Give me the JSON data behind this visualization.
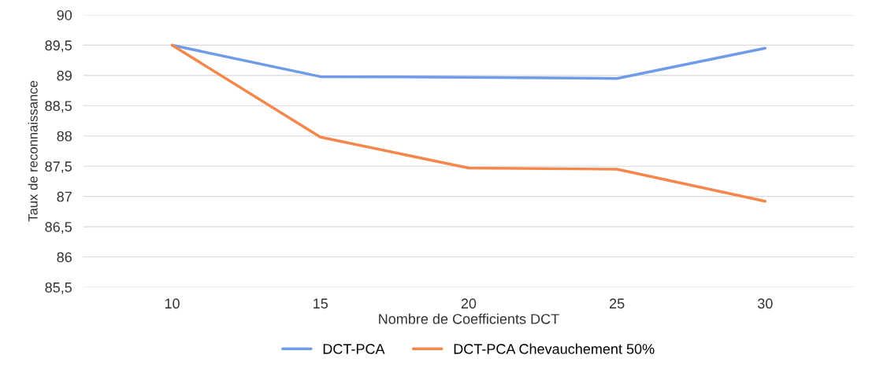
{
  "chart_data": {
    "type": "line",
    "xlabel": "Nombre de Coefficients DCT",
    "ylabel": "Taux de reconnaissance",
    "categories": [
      "10",
      "15",
      "20",
      "25",
      "30"
    ],
    "series": [
      {
        "name": "DCT-PCA",
        "color": "#6f9be8",
        "values": [
          89.5,
          88.98,
          88.97,
          88.95,
          89.45
        ]
      },
      {
        "name": "DCT-PCA Chevauchement 50%",
        "color": "#f4874b",
        "values": [
          89.5,
          87.98,
          87.47,
          87.45,
          86.92
        ]
      }
    ],
    "ylim": [
      85.5,
      90
    ],
    "yticks": [
      {
        "value": 85.5,
        "label": "85,5"
      },
      {
        "value": 86,
        "label": "86"
      },
      {
        "value": 86.5,
        "label": "86,5"
      },
      {
        "value": 87,
        "label": "87"
      },
      {
        "value": 87.5,
        "label": "87,5"
      },
      {
        "value": 88,
        "label": "88"
      },
      {
        "value": 88.5,
        "label": "88,5"
      },
      {
        "value": 89,
        "label": "89"
      },
      {
        "value": 89.5,
        "label": "89,5"
      },
      {
        "value": 90,
        "label": "90"
      }
    ],
    "grid": "y",
    "legend": "bottom",
    "marker": "none",
    "line_style": "solid"
  }
}
